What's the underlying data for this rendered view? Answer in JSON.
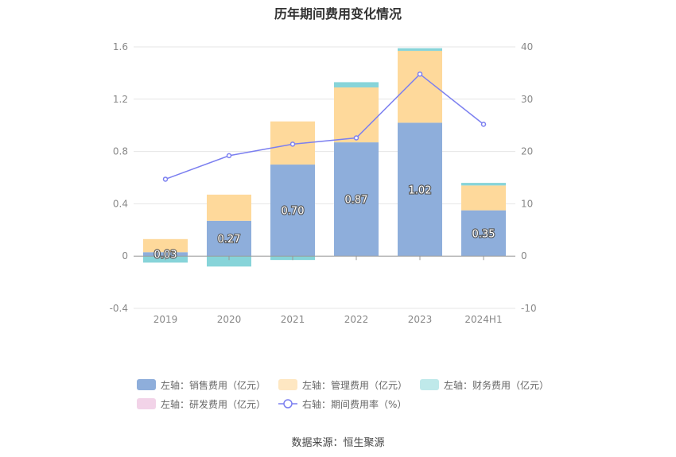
{
  "chart_data": {
    "type": "bar",
    "title": "历年期间费用变化情况",
    "categories": [
      "2019",
      "2020",
      "2021",
      "2022",
      "2023",
      "2024H1"
    ],
    "stacked": true,
    "left_axis": {
      "ylim": [
        -0.4,
        1.6
      ],
      "ticks": [
        "-0.4",
        "0",
        "0.4",
        "0.8",
        "1.2",
        "1.6"
      ],
      "tick_values": [
        -0.4,
        0,
        0.4,
        0.8,
        1.2,
        1.6
      ]
    },
    "right_axis": {
      "ylim": [
        -10,
        40
      ],
      "ticks": [
        "-10",
        "0",
        "10",
        "20",
        "30",
        "40"
      ],
      "tick_values": [
        -10,
        0,
        10,
        20,
        30,
        40
      ]
    },
    "series": [
      {
        "name": "左轴：销售费用（亿元）",
        "axis": "left",
        "color": "#8eaedb",
        "values": [
          0.03,
          0.27,
          0.7,
          0.87,
          1.02,
          0.35
        ],
        "labels": [
          "0.03",
          "0.27",
          "0.70",
          "0.87",
          "1.02",
          "0.35"
        ]
      },
      {
        "name": "左轴：管理费用（亿元）",
        "axis": "left",
        "color": "#fed99b",
        "values": [
          0.1,
          0.2,
          0.33,
          0.42,
          0.55,
          0.19
        ]
      },
      {
        "name": "左轴：财务费用（亿元）",
        "axis": "left",
        "color": "#87d4d9",
        "values": [
          -0.05,
          -0.08,
          -0.03,
          0.04,
          0.02,
          0.02
        ]
      },
      {
        "name": "左轴：研发费用（亿元）",
        "axis": "left",
        "color": "#f2d3e8",
        "values": [
          0,
          0,
          0,
          0,
          0,
          0
        ]
      },
      {
        "name": "右轴：期间费用率（%）",
        "axis": "right",
        "type": "line",
        "color": "#7b7ff0",
        "values": [
          14.7,
          19.2,
          21.4,
          22.6,
          34.8,
          25.2
        ]
      }
    ],
    "grid": true,
    "legend_position": "bottom"
  },
  "source": "数据来源：恒生聚源"
}
